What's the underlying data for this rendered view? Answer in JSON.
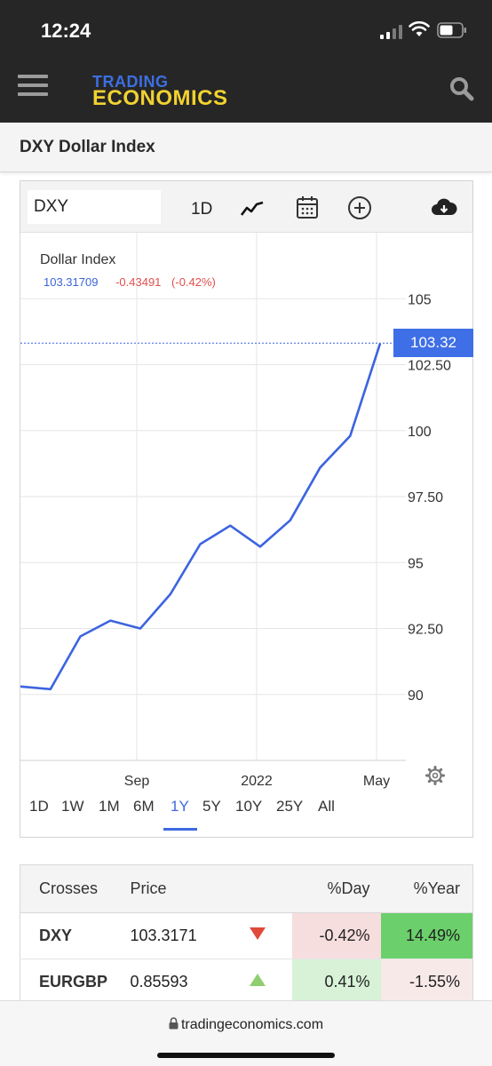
{
  "status_bar": {
    "time": "12:24"
  },
  "header": {
    "logo_top": "TRADING",
    "logo_bottom": "ECONOMICS"
  },
  "page": {
    "title": "DXY Dollar Index"
  },
  "toolbar": {
    "symbol": "DXY",
    "interval": "1D"
  },
  "chart": {
    "name": "Dollar Index",
    "last": "103.31709",
    "change": "-0.43491",
    "change_pct": "(-0.42%)",
    "price_tag": "103.32",
    "y_ticks": [
      "105",
      "102.50",
      "100",
      "97.50",
      "95",
      "92.50",
      "90"
    ],
    "x_ticks": [
      "Sep",
      "2022",
      "May"
    ],
    "ranges": [
      "1D",
      "1W",
      "1M",
      "6M",
      "1Y",
      "5Y",
      "10Y",
      "25Y",
      "All"
    ],
    "active_range": "1Y",
    "colors": {
      "line": "#3c64e0",
      "negative": "#e0504a"
    }
  },
  "chart_data": {
    "type": "line",
    "x": [
      "2021-05",
      "2021-06",
      "2021-07",
      "2021-08",
      "2021-09",
      "2021-10",
      "2021-11",
      "2021-12",
      "2022-01",
      "2022-02",
      "2022-03",
      "2022-04",
      "2022-05"
    ],
    "series": [
      {
        "name": "Dollar Index",
        "values": [
          90.3,
          90.2,
          92.2,
          92.8,
          92.5,
          93.8,
          95.7,
          96.4,
          95.6,
          96.6,
          98.6,
          99.8,
          103.3
        ]
      }
    ],
    "ylim": [
      87.5,
      107.5
    ],
    "y_ticks": [
      90,
      92.5,
      95,
      97.5,
      100,
      102.5,
      105
    ],
    "last_value": 103.31709
  },
  "crosses": {
    "headers": [
      "Crosses",
      "Price",
      "%Day",
      "%Year"
    ],
    "rows": [
      {
        "symbol": "DXY",
        "price": "103.3171",
        "direction": "down",
        "day": "-0.42%",
        "year": "14.49%"
      },
      {
        "symbol": "EURGBP",
        "price": "0.85593",
        "direction": "up",
        "day": "0.41%",
        "year": "-1.55%"
      }
    ]
  },
  "footer": {
    "url": "tradingeconomics.com"
  }
}
